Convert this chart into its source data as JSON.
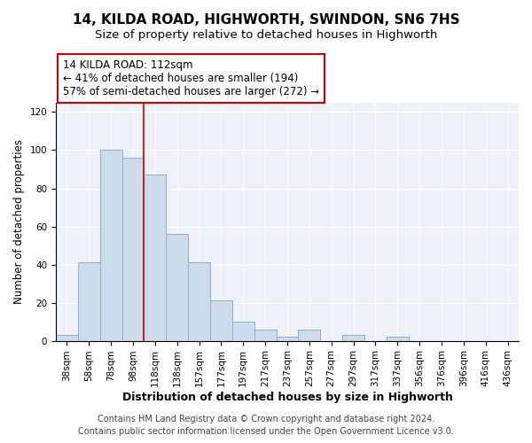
{
  "title": "14, KILDA ROAD, HIGHWORTH, SWINDON, SN6 7HS",
  "subtitle": "Size of property relative to detached houses in Highworth",
  "xlabel": "Distribution of detached houses by size in Highworth",
  "ylabel": "Number of detached properties",
  "bar_labels": [
    "38sqm",
    "58sqm",
    "78sqm",
    "98sqm",
    "118sqm",
    "138sqm",
    "157sqm",
    "177sqm",
    "197sqm",
    "217sqm",
    "237sqm",
    "257sqm",
    "277sqm",
    "297sqm",
    "317sqm",
    "337sqm",
    "356sqm",
    "376sqm",
    "396sqm",
    "416sqm",
    "436sqm"
  ],
  "bar_values": [
    3,
    41,
    100,
    96,
    87,
    56,
    41,
    21,
    10,
    6,
    2,
    6,
    0,
    3,
    0,
    2,
    0,
    0,
    0,
    0,
    0
  ],
  "bar_color": "#ccdcec",
  "bar_edge_color": "#90aec8",
  "vline_x": 3.5,
  "vline_color": "#cc0000",
  "annotation_text": "14 KILDA ROAD: 112sqm\n← 41% of detached houses are smaller (194)\n57% of semi-detached houses are larger (272) →",
  "annotation_box_color": "white",
  "annotation_box_edge_color": "#cc0000",
  "ylim": [
    0,
    125
  ],
  "yticks": [
    0,
    20,
    40,
    60,
    80,
    100,
    120
  ],
  "footer1": "Contains HM Land Registry data © Crown copyright and database right 2024.",
  "footer2": "Contains public sector information licensed under the Open Government Licence v3.0.",
  "background_color": "#ffffff",
  "plot_background_color": "#eef2f8",
  "title_fontsize": 11,
  "subtitle_fontsize": 9.5,
  "xlabel_fontsize": 9,
  "ylabel_fontsize": 8.5,
  "tick_fontsize": 7.5,
  "annotation_fontsize": 8.5,
  "footer_fontsize": 7
}
